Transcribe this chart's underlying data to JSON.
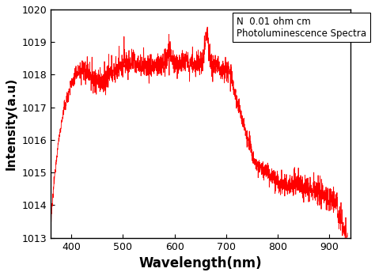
{
  "xlabel": "Wavelength(nm)",
  "ylabel": "Intensity(a.u)",
  "xlim": [
    360,
    940
  ],
  "ylim": [
    1013,
    1020
  ],
  "yticks": [
    1013,
    1014,
    1015,
    1016,
    1017,
    1018,
    1019,
    1020
  ],
  "xticks": [
    400,
    500,
    600,
    700,
    800,
    900
  ],
  "line_color": "#ff0000",
  "legend_line1": "N  0.01 ohm cm",
  "legend_line2": "Photoluminescence Spectra",
  "seed": 12345,
  "figsize": [
    4.74,
    3.49
  ],
  "dpi": 100
}
